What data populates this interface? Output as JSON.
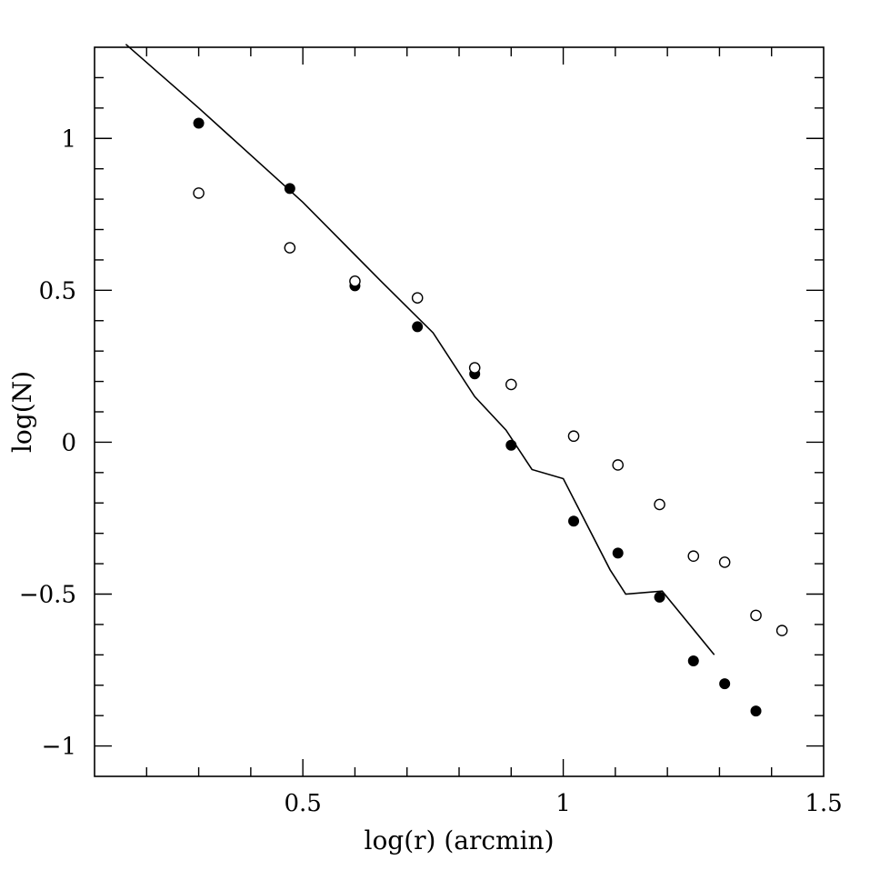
{
  "chart_data": {
    "type": "scatter",
    "xlabel": "log(r)  (arcmin)",
    "ylabel": "log(N)",
    "xlim": [
      0.1,
      1.5
    ],
    "ylim": [
      -1.1,
      1.3
    ],
    "x_ticks": [
      0.5,
      1,
      1.5
    ],
    "x_tick_labels": [
      "0.5",
      "1",
      "1.5"
    ],
    "y_ticks": [
      -1,
      -0.5,
      0,
      0.5,
      1
    ],
    "y_tick_labels": [
      "−1",
      "−0.5",
      "0",
      "0.5",
      "1"
    ],
    "x_minor_step": 0.1,
    "y_minor_step": 0.1,
    "grid": false,
    "legend": "none",
    "series": [
      {
        "marker": "filled-circle",
        "x": [
          0.3,
          0.475,
          0.6,
          0.72,
          0.83,
          0.9,
          1.02,
          1.105,
          1.185,
          1.25,
          1.31,
          1.37
        ],
        "y": [
          1.05,
          0.835,
          0.515,
          0.38,
          0.225,
          -0.01,
          -0.26,
          -0.365,
          -0.51,
          -0.72,
          -0.795,
          -0.885
        ]
      },
      {
        "marker": "open-circle",
        "x": [
          0.3,
          0.475,
          0.6,
          0.72,
          0.83,
          0.9,
          1.02,
          1.105,
          1.185,
          1.25,
          1.31,
          1.37,
          1.42
        ],
        "y": [
          0.82,
          0.64,
          0.53,
          0.475,
          0.245,
          0.19,
          0.02,
          -0.075,
          -0.205,
          -0.375,
          -0.395,
          -0.57,
          -0.62
        ]
      },
      {
        "marker": "line",
        "x": [
          0.16,
          0.3,
          0.5,
          0.65,
          0.75,
          0.83,
          0.89,
          0.94,
          1.0,
          1.09,
          1.12,
          1.19,
          1.29
        ],
        "y": [
          1.31,
          1.1,
          0.79,
          0.53,
          0.36,
          0.15,
          0.04,
          -0.09,
          -0.12,
          -0.42,
          -0.5,
          -0.49,
          -0.7
        ]
      }
    ]
  }
}
